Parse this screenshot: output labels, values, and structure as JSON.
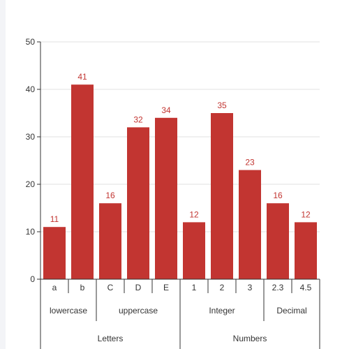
{
  "chart_data": {
    "type": "bar",
    "title": "",
    "xlabel": "",
    "ylabel": "",
    "ylim": [
      0,
      50
    ],
    "y_ticks": [
      0,
      10,
      20,
      30,
      40,
      50
    ],
    "grid": true,
    "bar_color": "#c23531",
    "categories": [
      "a",
      "b",
      "C",
      "D",
      "E",
      "1",
      "2",
      "3",
      "2.3",
      "4.5"
    ],
    "values": [
      11,
      41,
      16,
      32,
      34,
      12,
      35,
      23,
      16,
      12
    ],
    "subgroups": [
      {
        "label": "lowercase",
        "span": 2
      },
      {
        "label": "uppercase",
        "span": 3
      },
      {
        "label": "Integer",
        "span": 3
      },
      {
        "label": "Decimal",
        "span": 2
      }
    ],
    "groups": [
      {
        "label": "Letters",
        "span": 5
      },
      {
        "label": "Numbers",
        "span": 5
      }
    ]
  }
}
